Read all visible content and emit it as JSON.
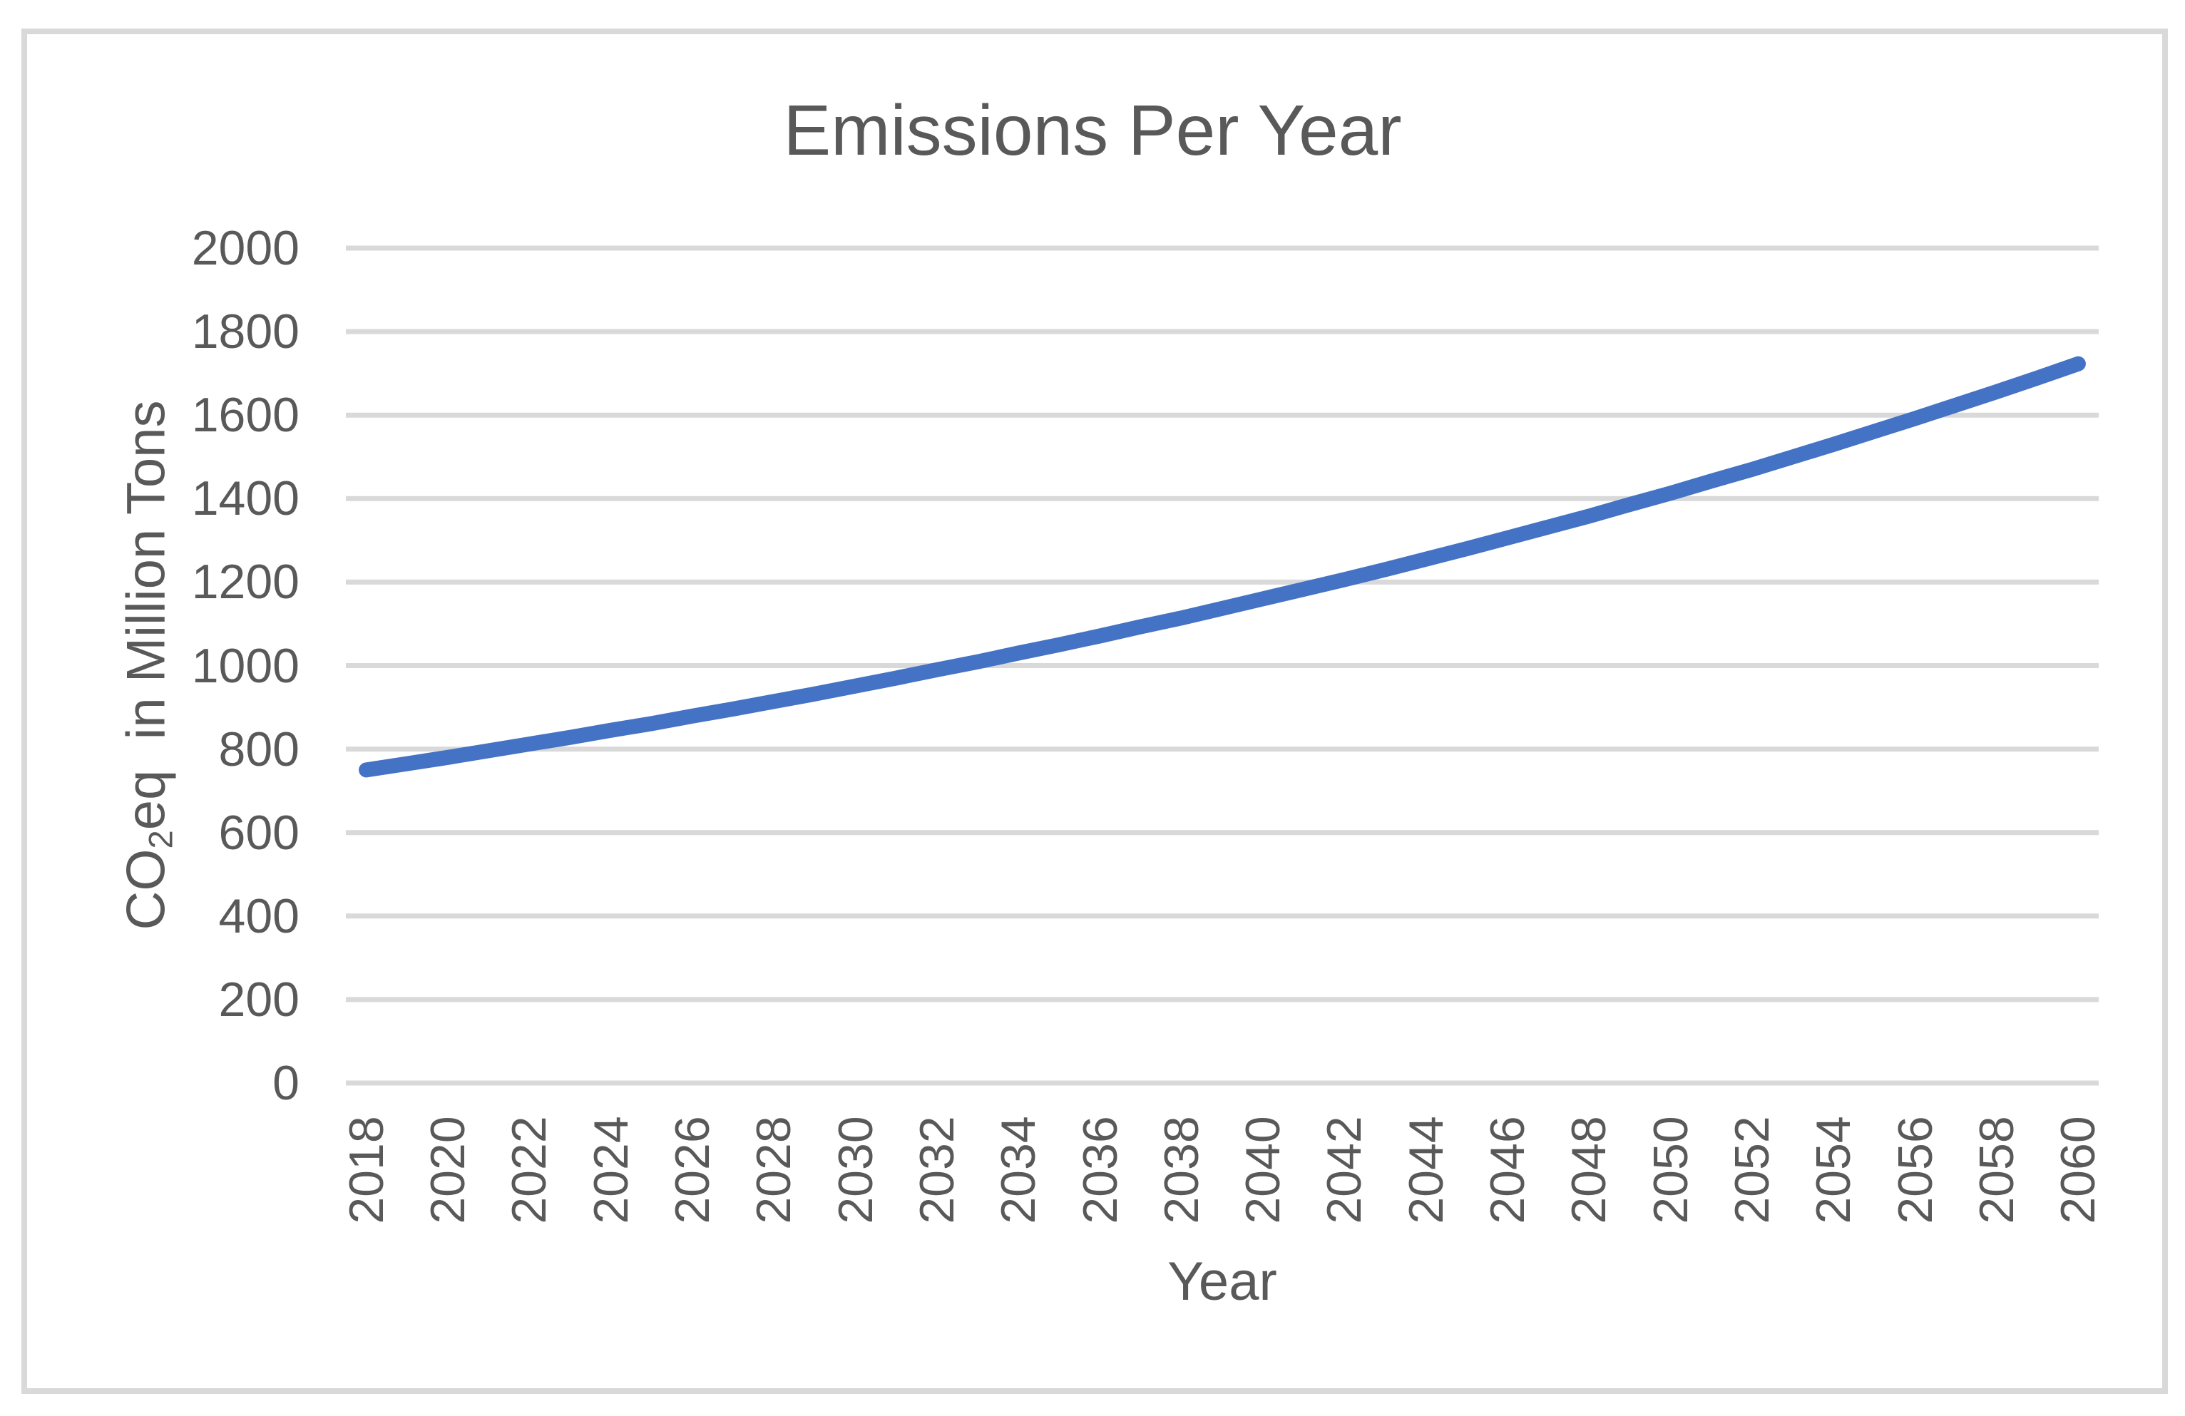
{
  "title": "Emissions Per Year",
  "x_axis": {
    "title": "Year",
    "ticks": [
      2018,
      2020,
      2022,
      2024,
      2026,
      2028,
      2030,
      2032,
      2034,
      2036,
      2038,
      2040,
      2042,
      2044,
      2046,
      2048,
      2050,
      2052,
      2054,
      2056,
      2058,
      2060
    ]
  },
  "y_axis": {
    "title_prefix": "CO",
    "title_sub": "2",
    "title_suffix": "eq  in Million Tons",
    "ticks": [
      0,
      200,
      400,
      600,
      800,
      1000,
      1200,
      1400,
      1600,
      1800,
      2000
    ]
  },
  "colors": {
    "line": "#4472C4",
    "gridline": "#D9D9D9",
    "text": "#595959",
    "border": "#D9D9D9"
  },
  "chart_data": {
    "type": "line",
    "title": "Emissions Per Year",
    "xlabel": "Year",
    "ylabel": "CO2eq in Million Tons",
    "x": [
      2018,
      2019,
      2020,
      2021,
      2022,
      2023,
      2024,
      2025,
      2026,
      2027,
      2028,
      2029,
      2030,
      2031,
      2032,
      2033,
      2034,
      2035,
      2036,
      2037,
      2038,
      2039,
      2040,
      2041,
      2042,
      2043,
      2044,
      2045,
      2046,
      2047,
      2048,
      2049,
      2050,
      2051,
      2052,
      2053,
      2054,
      2055,
      2056,
      2057,
      2058,
      2059,
      2060
    ],
    "values": [
      750,
      765,
      780,
      796,
      812,
      828,
      845,
      861,
      879,
      896,
      914,
      932,
      951,
      970,
      990,
      1009,
      1030,
      1050,
      1071,
      1093,
      1114,
      1137,
      1160,
      1183,
      1206,
      1230,
      1255,
      1280,
      1306,
      1332,
      1358,
      1386,
      1413,
      1442,
      1470,
      1500,
      1530,
      1561,
      1592,
      1624,
      1656,
      1689,
      1723
    ],
    "values_estimated": true,
    "ylim": [
      0,
      2000
    ],
    "y_tick_step": 200,
    "x_tick_interval": 2,
    "grid": true,
    "legend": false,
    "line_style": "solid-thick-round-cap"
  }
}
